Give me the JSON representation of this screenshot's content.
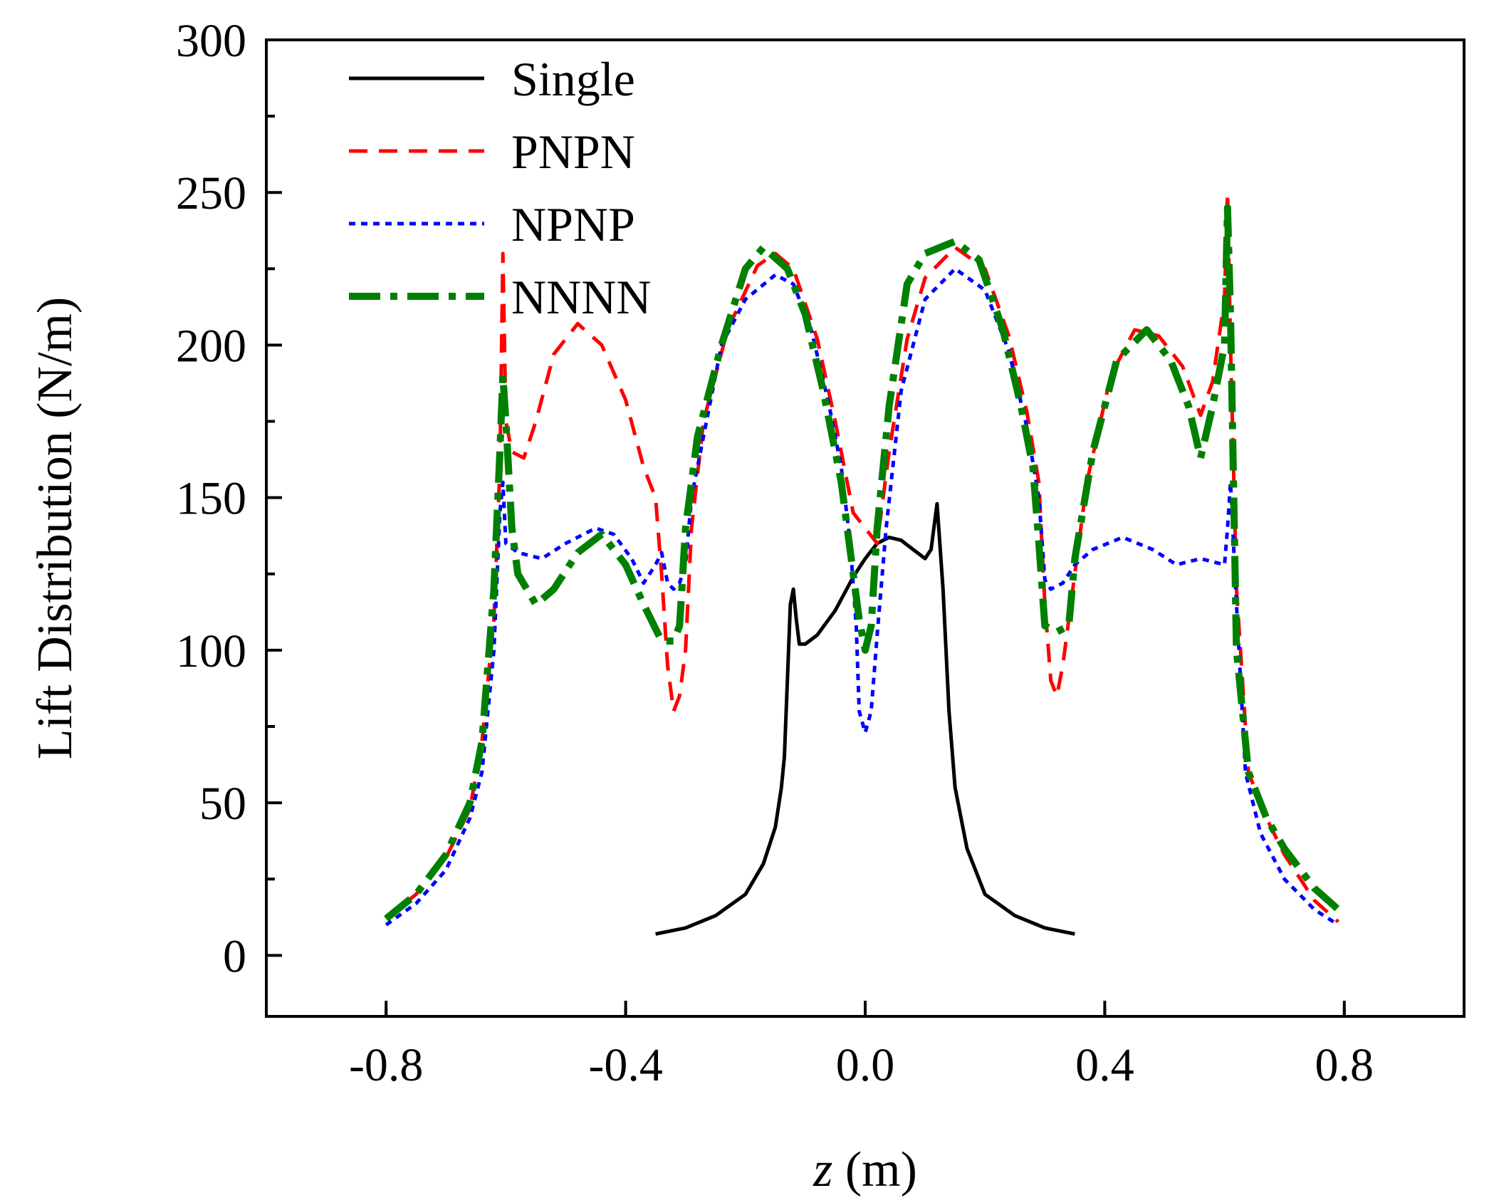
{
  "chart_data": {
    "type": "line",
    "title": "",
    "xlabel_var": "z",
    "xlabel_unit": " (m)",
    "ylabel": "Lift Distribution (N/m)",
    "xlim": [
      -1.0,
      1.0
    ],
    "ylim": [
      -20,
      300
    ],
    "xticks": [
      -0.8,
      -0.4,
      0.0,
      0.4,
      0.8
    ],
    "xtick_labels": [
      "-0.8",
      "-0.4",
      "0.0",
      "0.4",
      "0.8"
    ],
    "yticks": [
      0,
      50,
      100,
      150,
      200,
      250,
      300
    ],
    "ytick_labels": [
      "0",
      "50",
      "100",
      "150",
      "200",
      "250",
      "300"
    ],
    "grid": false,
    "legend_position": "top-left",
    "series": [
      {
        "name": "Single",
        "color": "#000000",
        "dash": "solid",
        "points": [
          [
            -0.35,
            7
          ],
          [
            -0.3,
            9
          ],
          [
            -0.25,
            13
          ],
          [
            -0.2,
            20
          ],
          [
            -0.17,
            30
          ],
          [
            -0.15,
            42
          ],
          [
            -0.14,
            55
          ],
          [
            -0.135,
            65
          ],
          [
            -0.13,
            90
          ],
          [
            -0.125,
            115
          ],
          [
            -0.12,
            120
          ],
          [
            -0.115,
            110
          ],
          [
            -0.11,
            102
          ],
          [
            -0.1,
            102
          ],
          [
            -0.08,
            105
          ],
          [
            -0.05,
            113
          ],
          [
            -0.02,
            124
          ],
          [
            0.0,
            130
          ],
          [
            0.02,
            135
          ],
          [
            0.04,
            137
          ],
          [
            0.06,
            136
          ],
          [
            0.08,
            133
          ],
          [
            0.1,
            130
          ],
          [
            0.11,
            133
          ],
          [
            0.12,
            148
          ],
          [
            0.13,
            120
          ],
          [
            0.14,
            80
          ],
          [
            0.15,
            55
          ],
          [
            0.17,
            35
          ],
          [
            0.2,
            20
          ],
          [
            0.25,
            13
          ],
          [
            0.3,
            9
          ],
          [
            0.35,
            7
          ]
        ]
      },
      {
        "name": "PNPN",
        "color": "#ff0000",
        "dash": "dashed",
        "points": [
          [
            -0.8,
            12
          ],
          [
            -0.75,
            20
          ],
          [
            -0.7,
            32
          ],
          [
            -0.66,
            48
          ],
          [
            -0.64,
            70
          ],
          [
            -0.62,
            110
          ],
          [
            -0.61,
            160
          ],
          [
            -0.605,
            230
          ],
          [
            -0.6,
            175
          ],
          [
            -0.59,
            165
          ],
          [
            -0.57,
            163
          ],
          [
            -0.55,
            175
          ],
          [
            -0.52,
            197
          ],
          [
            -0.48,
            207
          ],
          [
            -0.44,
            200
          ],
          [
            -0.4,
            182
          ],
          [
            -0.37,
            160
          ],
          [
            -0.35,
            150
          ],
          [
            -0.34,
            125
          ],
          [
            -0.33,
            95
          ],
          [
            -0.32,
            80
          ],
          [
            -0.31,
            85
          ],
          [
            -0.3,
            100
          ],
          [
            -0.29,
            140
          ],
          [
            -0.27,
            175
          ],
          [
            -0.23,
            205
          ],
          [
            -0.18,
            226
          ],
          [
            -0.15,
            230
          ],
          [
            -0.12,
            225
          ],
          [
            -0.08,
            202
          ],
          [
            -0.05,
            175
          ],
          [
            -0.02,
            145
          ],
          [
            0.0,
            140
          ],
          [
            0.02,
            135
          ],
          [
            0.04,
            165
          ],
          [
            0.07,
            202
          ],
          [
            0.1,
            222
          ],
          [
            0.15,
            232
          ],
          [
            0.2,
            225
          ],
          [
            0.24,
            203
          ],
          [
            0.27,
            178
          ],
          [
            0.29,
            155
          ],
          [
            0.3,
            115
          ],
          [
            0.31,
            90
          ],
          [
            0.32,
            85
          ],
          [
            0.33,
            95
          ],
          [
            0.34,
            110
          ],
          [
            0.37,
            155
          ],
          [
            0.41,
            190
          ],
          [
            0.45,
            205
          ],
          [
            0.49,
            203
          ],
          [
            0.53,
            193
          ],
          [
            0.56,
            177
          ],
          [
            0.58,
            188
          ],
          [
            0.6,
            215
          ],
          [
            0.605,
            250
          ],
          [
            0.61,
            200
          ],
          [
            0.62,
            120
          ],
          [
            0.64,
            60
          ],
          [
            0.67,
            45
          ],
          [
            0.7,
            33
          ],
          [
            0.75,
            18
          ],
          [
            0.79,
            11
          ]
        ]
      },
      {
        "name": "NPNP",
        "color": "#0000ff",
        "dash": "dotted",
        "points": [
          [
            -0.8,
            10
          ],
          [
            -0.75,
            17
          ],
          [
            -0.7,
            28
          ],
          [
            -0.66,
            45
          ],
          [
            -0.64,
            60
          ],
          [
            -0.62,
            100
          ],
          [
            -0.61,
            145
          ],
          [
            -0.605,
            155
          ],
          [
            -0.6,
            135
          ],
          [
            -0.58,
            132
          ],
          [
            -0.54,
            130
          ],
          [
            -0.5,
            135
          ],
          [
            -0.45,
            140
          ],
          [
            -0.42,
            138
          ],
          [
            -0.39,
            130
          ],
          [
            -0.37,
            122
          ],
          [
            -0.35,
            128
          ],
          [
            -0.34,
            132
          ],
          [
            -0.33,
            122
          ],
          [
            -0.32,
            120
          ],
          [
            -0.31,
            122
          ],
          [
            -0.3,
            128
          ],
          [
            -0.29,
            150
          ],
          [
            -0.27,
            170
          ],
          [
            -0.24,
            200
          ],
          [
            -0.2,
            215
          ],
          [
            -0.15,
            223
          ],
          [
            -0.12,
            220
          ],
          [
            -0.09,
            205
          ],
          [
            -0.06,
            180
          ],
          [
            -0.04,
            160
          ],
          [
            -0.025,
            135
          ],
          [
            -0.015,
            108
          ],
          [
            -0.01,
            80
          ],
          [
            0.0,
            73
          ],
          [
            0.01,
            80
          ],
          [
            0.02,
            105
          ],
          [
            0.035,
            140
          ],
          [
            0.06,
            185
          ],
          [
            0.1,
            215
          ],
          [
            0.15,
            225
          ],
          [
            0.2,
            218
          ],
          [
            0.24,
            198
          ],
          [
            0.27,
            173
          ],
          [
            0.29,
            150
          ],
          [
            0.3,
            123
          ],
          [
            0.31,
            120
          ],
          [
            0.33,
            122
          ],
          [
            0.35,
            128
          ],
          [
            0.38,
            133
          ],
          [
            0.43,
            137
          ],
          [
            0.48,
            133
          ],
          [
            0.52,
            128
          ],
          [
            0.56,
            130
          ],
          [
            0.6,
            128
          ],
          [
            0.605,
            140
          ],
          [
            0.61,
            155
          ],
          [
            0.62,
            115
          ],
          [
            0.635,
            60
          ],
          [
            0.66,
            40
          ],
          [
            0.7,
            25
          ],
          [
            0.75,
            15
          ],
          [
            0.79,
            10
          ]
        ]
      },
      {
        "name": "NNNN",
        "color": "#008000",
        "dash": "dashdot",
        "points": [
          [
            -0.8,
            12
          ],
          [
            -0.75,
            20
          ],
          [
            -0.7,
            33
          ],
          [
            -0.66,
            50
          ],
          [
            -0.64,
            70
          ],
          [
            -0.62,
            120
          ],
          [
            -0.61,
            165
          ],
          [
            -0.605,
            190
          ],
          [
            -0.6,
            175
          ],
          [
            -0.59,
            140
          ],
          [
            -0.58,
            125
          ],
          [
            -0.55,
            115
          ],
          [
            -0.52,
            120
          ],
          [
            -0.48,
            132
          ],
          [
            -0.44,
            138
          ],
          [
            -0.4,
            128
          ],
          [
            -0.37,
            115
          ],
          [
            -0.34,
            103
          ],
          [
            -0.32,
            103
          ],
          [
            -0.31,
            108
          ],
          [
            -0.3,
            140
          ],
          [
            -0.28,
            170
          ],
          [
            -0.24,
            200
          ],
          [
            -0.2,
            225
          ],
          [
            -0.17,
            232
          ],
          [
            -0.13,
            225
          ],
          [
            -0.1,
            210
          ],
          [
            -0.07,
            185
          ],
          [
            -0.04,
            155
          ],
          [
            -0.02,
            125
          ],
          [
            -0.01,
            110
          ],
          [
            0.0,
            100
          ],
          [
            0.01,
            108
          ],
          [
            0.02,
            140
          ],
          [
            0.04,
            180
          ],
          [
            0.07,
            220
          ],
          [
            0.1,
            230
          ],
          [
            0.15,
            234
          ],
          [
            0.19,
            228
          ],
          [
            0.23,
            205
          ],
          [
            0.26,
            180
          ],
          [
            0.28,
            160
          ],
          [
            0.29,
            135
          ],
          [
            0.3,
            108
          ],
          [
            0.32,
            106
          ],
          [
            0.34,
            108
          ],
          [
            0.35,
            130
          ],
          [
            0.38,
            165
          ],
          [
            0.42,
            195
          ],
          [
            0.47,
            205
          ],
          [
            0.51,
            195
          ],
          [
            0.54,
            180
          ],
          [
            0.56,
            163
          ],
          [
            0.58,
            180
          ],
          [
            0.6,
            200
          ],
          [
            0.605,
            245
          ],
          [
            0.61,
            210
          ],
          [
            0.62,
            100
          ],
          [
            0.64,
            60
          ],
          [
            0.67,
            45
          ],
          [
            0.7,
            35
          ],
          [
            0.75,
            22
          ],
          [
            0.79,
            15
          ]
        ]
      }
    ]
  }
}
